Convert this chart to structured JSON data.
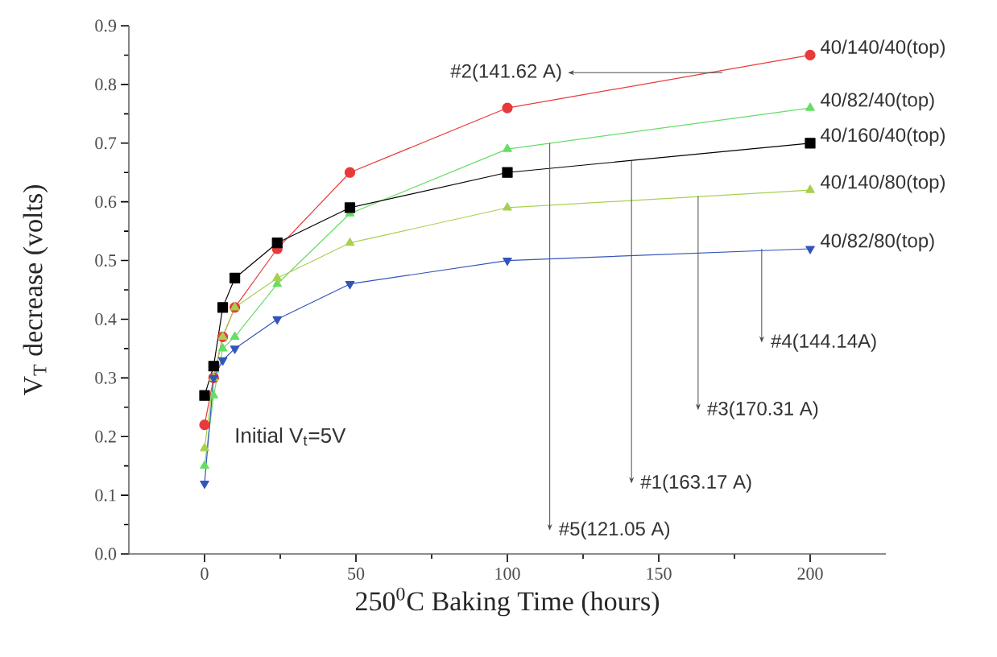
{
  "chart_data": {
    "type": "line",
    "xlabel": "250$^{0}$C Baking Time (hours)",
    "ylabel": "V$_{T}$ decrease (volts)",
    "x": [
      0,
      3,
      6,
      10,
      24,
      48,
      100,
      200
    ],
    "series": [
      {
        "name": "40/140/40(top)",
        "color": "#e83a3a",
        "marker": "circle",
        "values": [
          0.22,
          0.3,
          0.37,
          0.42,
          0.52,
          0.65,
          0.76,
          0.85
        ]
      },
      {
        "name": "40/82/40(top)",
        "color": "#66dd66",
        "marker": "triangle",
        "values": [
          0.15,
          0.27,
          0.35,
          0.37,
          0.46,
          0.58,
          0.69,
          0.76
        ]
      },
      {
        "name": "40/160/40(top)",
        "color": "#000000",
        "marker": "square",
        "values": [
          0.27,
          0.32,
          0.42,
          0.47,
          0.53,
          0.59,
          0.65,
          0.7
        ]
      },
      {
        "name": "40/140/80(top)",
        "color": "#a8d050",
        "marker": "triangle",
        "values": [
          0.18,
          0.3,
          0.37,
          0.42,
          0.47,
          0.53,
          0.59,
          0.62
        ]
      },
      {
        "name": "40/82/80(top)",
        "color": "#3355bb",
        "marker": "triangle-down",
        "values": [
          0.12,
          0.3,
          0.33,
          0.35,
          0.4,
          0.46,
          0.5,
          0.52
        ]
      }
    ],
    "xlim": [
      -25,
      225
    ],
    "xticks": [
      0,
      50,
      100,
      150,
      200
    ],
    "ylim": [
      0,
      0.9
    ],
    "yticks": [
      {
        "value": 0,
        "label": "0.0"
      },
      0.1,
      0.2,
      0.3,
      0.4,
      0.5,
      0.6,
      0.7,
      0.8,
      0.9
    ],
    "legend": false,
    "grid": false,
    "annotations": [
      {
        "text": "#2(141.62 A)",
        "x": 171,
        "y": 0.82
      },
      {
        "text": "#5(121.05 A)",
        "x": 114,
        "y": 0.7
      },
      {
        "text": "#1(163.17 A)",
        "x": 141,
        "y": 0.67
      },
      {
        "text": "#3(170.31 A)",
        "x": 163,
        "y": 0.61
      },
      {
        "text": "#4(144.14A)",
        "x": 184,
        "y": 0.52
      },
      "Initial V$_{t}$=5V"
    ]
  }
}
